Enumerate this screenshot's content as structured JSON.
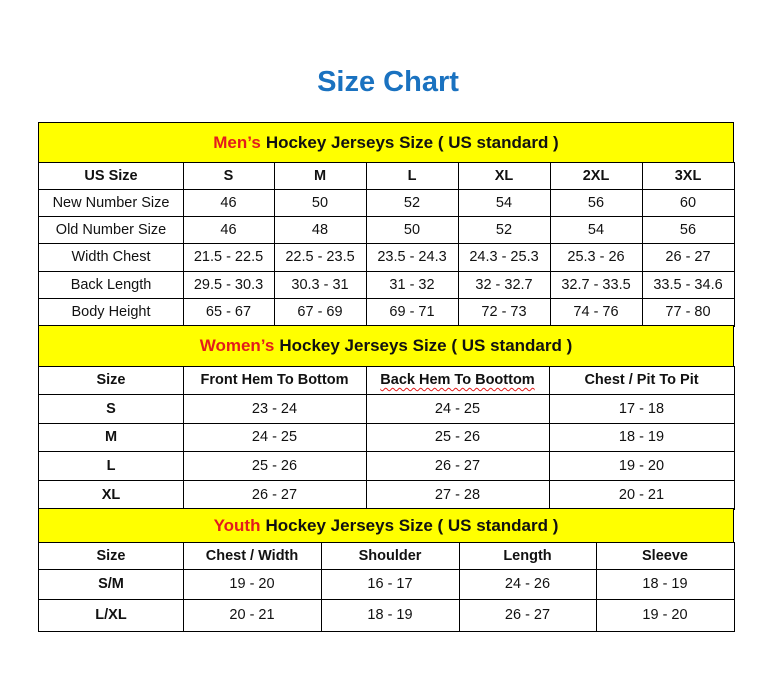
{
  "title": "Size Chart",
  "colors": {
    "title": "#1a72c0",
    "banner": "#ffff00",
    "highlight": "#e31c1c"
  },
  "mens": {
    "banner_highlight": "Men’s",
    "banner_rest": "Hockey Jerseys Size ( US standard )",
    "header": [
      "US Size",
      "S",
      "M",
      "L",
      "XL",
      "2XL",
      "3XL"
    ],
    "rows": [
      [
        "New Number Size",
        "46",
        "50",
        "52",
        "54",
        "56",
        "60"
      ],
      [
        "Old Number Size",
        "46",
        "48",
        "50",
        "52",
        "54",
        "56"
      ],
      [
        "Width Chest",
        "21.5 - 22.5",
        "22.5 - 23.5",
        "23.5 - 24.3",
        "24.3 - 25.3",
        "25.3 - 26",
        "26 - 27"
      ],
      [
        "Back Length",
        "29.5 - 30.3",
        "30.3 - 31",
        "31 - 32",
        "32 - 32.7",
        "32.7 - 33.5",
        "33.5 - 34.6"
      ],
      [
        "Body Height",
        "65 - 67",
        "67 - 69",
        "69 - 71",
        "72 - 73",
        "74 - 76",
        "77 - 80"
      ]
    ]
  },
  "womens": {
    "banner_highlight": "Women’s",
    "banner_rest": "Hockey Jerseys Size ( US standard )",
    "header": [
      "Size",
      "Front Hem To Bottom",
      "Back Hem To Boottom",
      "Chest / Pit To Pit"
    ],
    "rows": [
      [
        "S",
        "23 - 24",
        "24 - 25",
        "17 - 18"
      ],
      [
        "M",
        "24 - 25",
        "25 - 26",
        "18 - 19"
      ],
      [
        "L",
        "25 - 26",
        "26 - 27",
        "19 - 20"
      ],
      [
        "XL",
        "26 - 27",
        "27 - 28",
        "20 - 21"
      ]
    ]
  },
  "youth": {
    "banner_highlight": "Youth",
    "banner_rest": "Hockey Jerseys Size ( US standard )",
    "header": [
      "Size",
      "Chest / Width",
      "Shoulder",
      "Length",
      "Sleeve"
    ],
    "rows": [
      [
        "S/M",
        "19 - 20",
        "16 - 17",
        "24 - 26",
        "18 - 19"
      ],
      [
        "L/XL",
        "20 - 21",
        "18 - 19",
        "26 - 27",
        "19 - 20"
      ]
    ]
  }
}
